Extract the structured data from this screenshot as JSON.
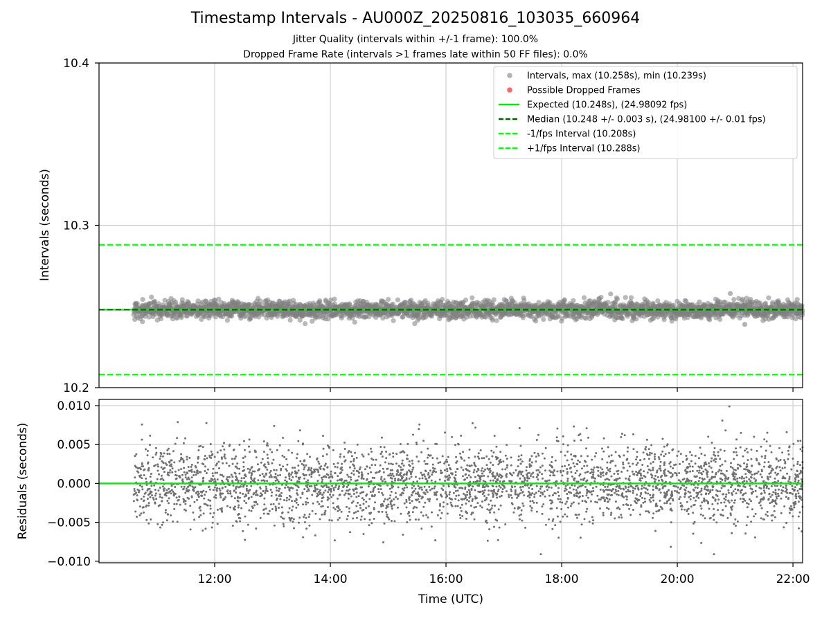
{
  "chart_data": [
    {
      "type": "scatter",
      "title": "Timestamp Intervals - AU000Z_20250816_103035_660964",
      "subtitles": [
        "Jitter Quality (intervals within +/-1 frame): 100.0%",
        "Dropped Frame Rate (intervals >1 frames late within 50 FF files): 0.0%"
      ],
      "xlabel": "",
      "ylabel": "Intervals (seconds)",
      "xlim": [
        "10:00",
        "22:10"
      ],
      "ylim": [
        10.2,
        10.4
      ],
      "x_ticks": [
        "12:00",
        "14:00",
        "16:00",
        "18:00",
        "20:00",
        "22:00"
      ],
      "y_ticks": [
        {
          "value": 10.2,
          "label": "10.2"
        },
        {
          "value": 10.3,
          "label": "10.3"
        },
        {
          "value": 10.4,
          "label": "10.4"
        }
      ],
      "grid": true,
      "legend_position": "top-right",
      "legend": [
        {
          "label": "Intervals, max (10.258s), min (10.239s)",
          "marker": "circle",
          "color": "#808080"
        },
        {
          "label": "Possible Dropped Frames",
          "marker": "circle",
          "color": "#ff0000"
        },
        {
          "label": "Expected (10.248s), (24.98092 fps)",
          "marker": "solid-line",
          "color": "#00ee00"
        },
        {
          "label": "Median (10.248 +/- 0.003 s), (24.98100 +/- 0.01 fps)",
          "marker": "dashed-line",
          "color": "#006400"
        },
        {
          "label": "-1/fps Interval (10.208s)",
          "marker": "dashed-line",
          "color": "#00ff00"
        },
        {
          "label": "+1/fps Interval (10.288s)",
          "marker": "dashed-line",
          "color": "#00ff00"
        }
      ],
      "series": [
        {
          "kind": "scatter",
          "color": "#808080",
          "x_range": [
            "10:36",
            "22:10"
          ],
          "y_center": 10.248,
          "y_max": 10.258,
          "y_min": 10.239,
          "point_interval_seconds": 10.248,
          "values": [
            10.248,
            10.251,
            10.245,
            10.25,
            10.247,
            10.249,
            10.244,
            10.252,
            10.246,
            10.248,
            10.25,
            10.243,
            10.251,
            10.247,
            10.249,
            10.258,
            10.239,
            10.246,
            10.253,
            10.248
          ]
        }
      ],
      "reference_lines": [
        {
          "name": "Expected",
          "y": 10.248,
          "color": "#00ee00",
          "style": "solid"
        },
        {
          "name": "Median",
          "y": 10.248,
          "color": "#006400",
          "style": "dashed"
        },
        {
          "name": "-1/fps Interval",
          "y": 10.208,
          "color": "#00ff00",
          "style": "dashed"
        },
        {
          "name": "+1/fps Interval",
          "y": 10.288,
          "color": "#00ff00",
          "style": "dashed"
        }
      ]
    },
    {
      "type": "scatter",
      "xlabel": "Time (UTC)",
      "ylabel": "Residuals (seconds)",
      "xlim": [
        "10:00",
        "22:10"
      ],
      "ylim": [
        -0.0102,
        0.0108
      ],
      "x_ticks": [
        "12:00",
        "14:00",
        "16:00",
        "18:00",
        "20:00",
        "22:00"
      ],
      "y_ticks": [
        {
          "value": 0.01,
          "label": "0.010"
        },
        {
          "value": 0.005,
          "label": "0.005"
        },
        {
          "value": 0.0,
          "label": "0.000"
        },
        {
          "value": -0.005,
          "label": "−0.005"
        },
        {
          "value": -0.01,
          "label": "−0.010"
        }
      ],
      "grid": true,
      "series": [
        {
          "kind": "scatter",
          "color": "#707070",
          "x_range": [
            "10:36",
            "22:10"
          ],
          "y_center": 0.0,
          "y_max": 0.0099,
          "y_min": -0.0091,
          "point_interval_seconds": 10.248,
          "values": [
            0.0012,
            -0.0021,
            0.0035,
            -0.0008,
            0.0003,
            -0.0042,
            0.0055,
            -0.0015,
            0.0009,
            -0.0031,
            0.0095,
            -0.0073,
            0.0018,
            -0.0004,
            0.0027,
            -0.0091,
            0.0099,
            -0.0056,
            0.0041,
            -0.0012
          ]
        }
      ],
      "reference_lines": [
        {
          "name": "zero",
          "y": 0.0,
          "color": "#00ee00",
          "style": "solid"
        }
      ]
    }
  ]
}
